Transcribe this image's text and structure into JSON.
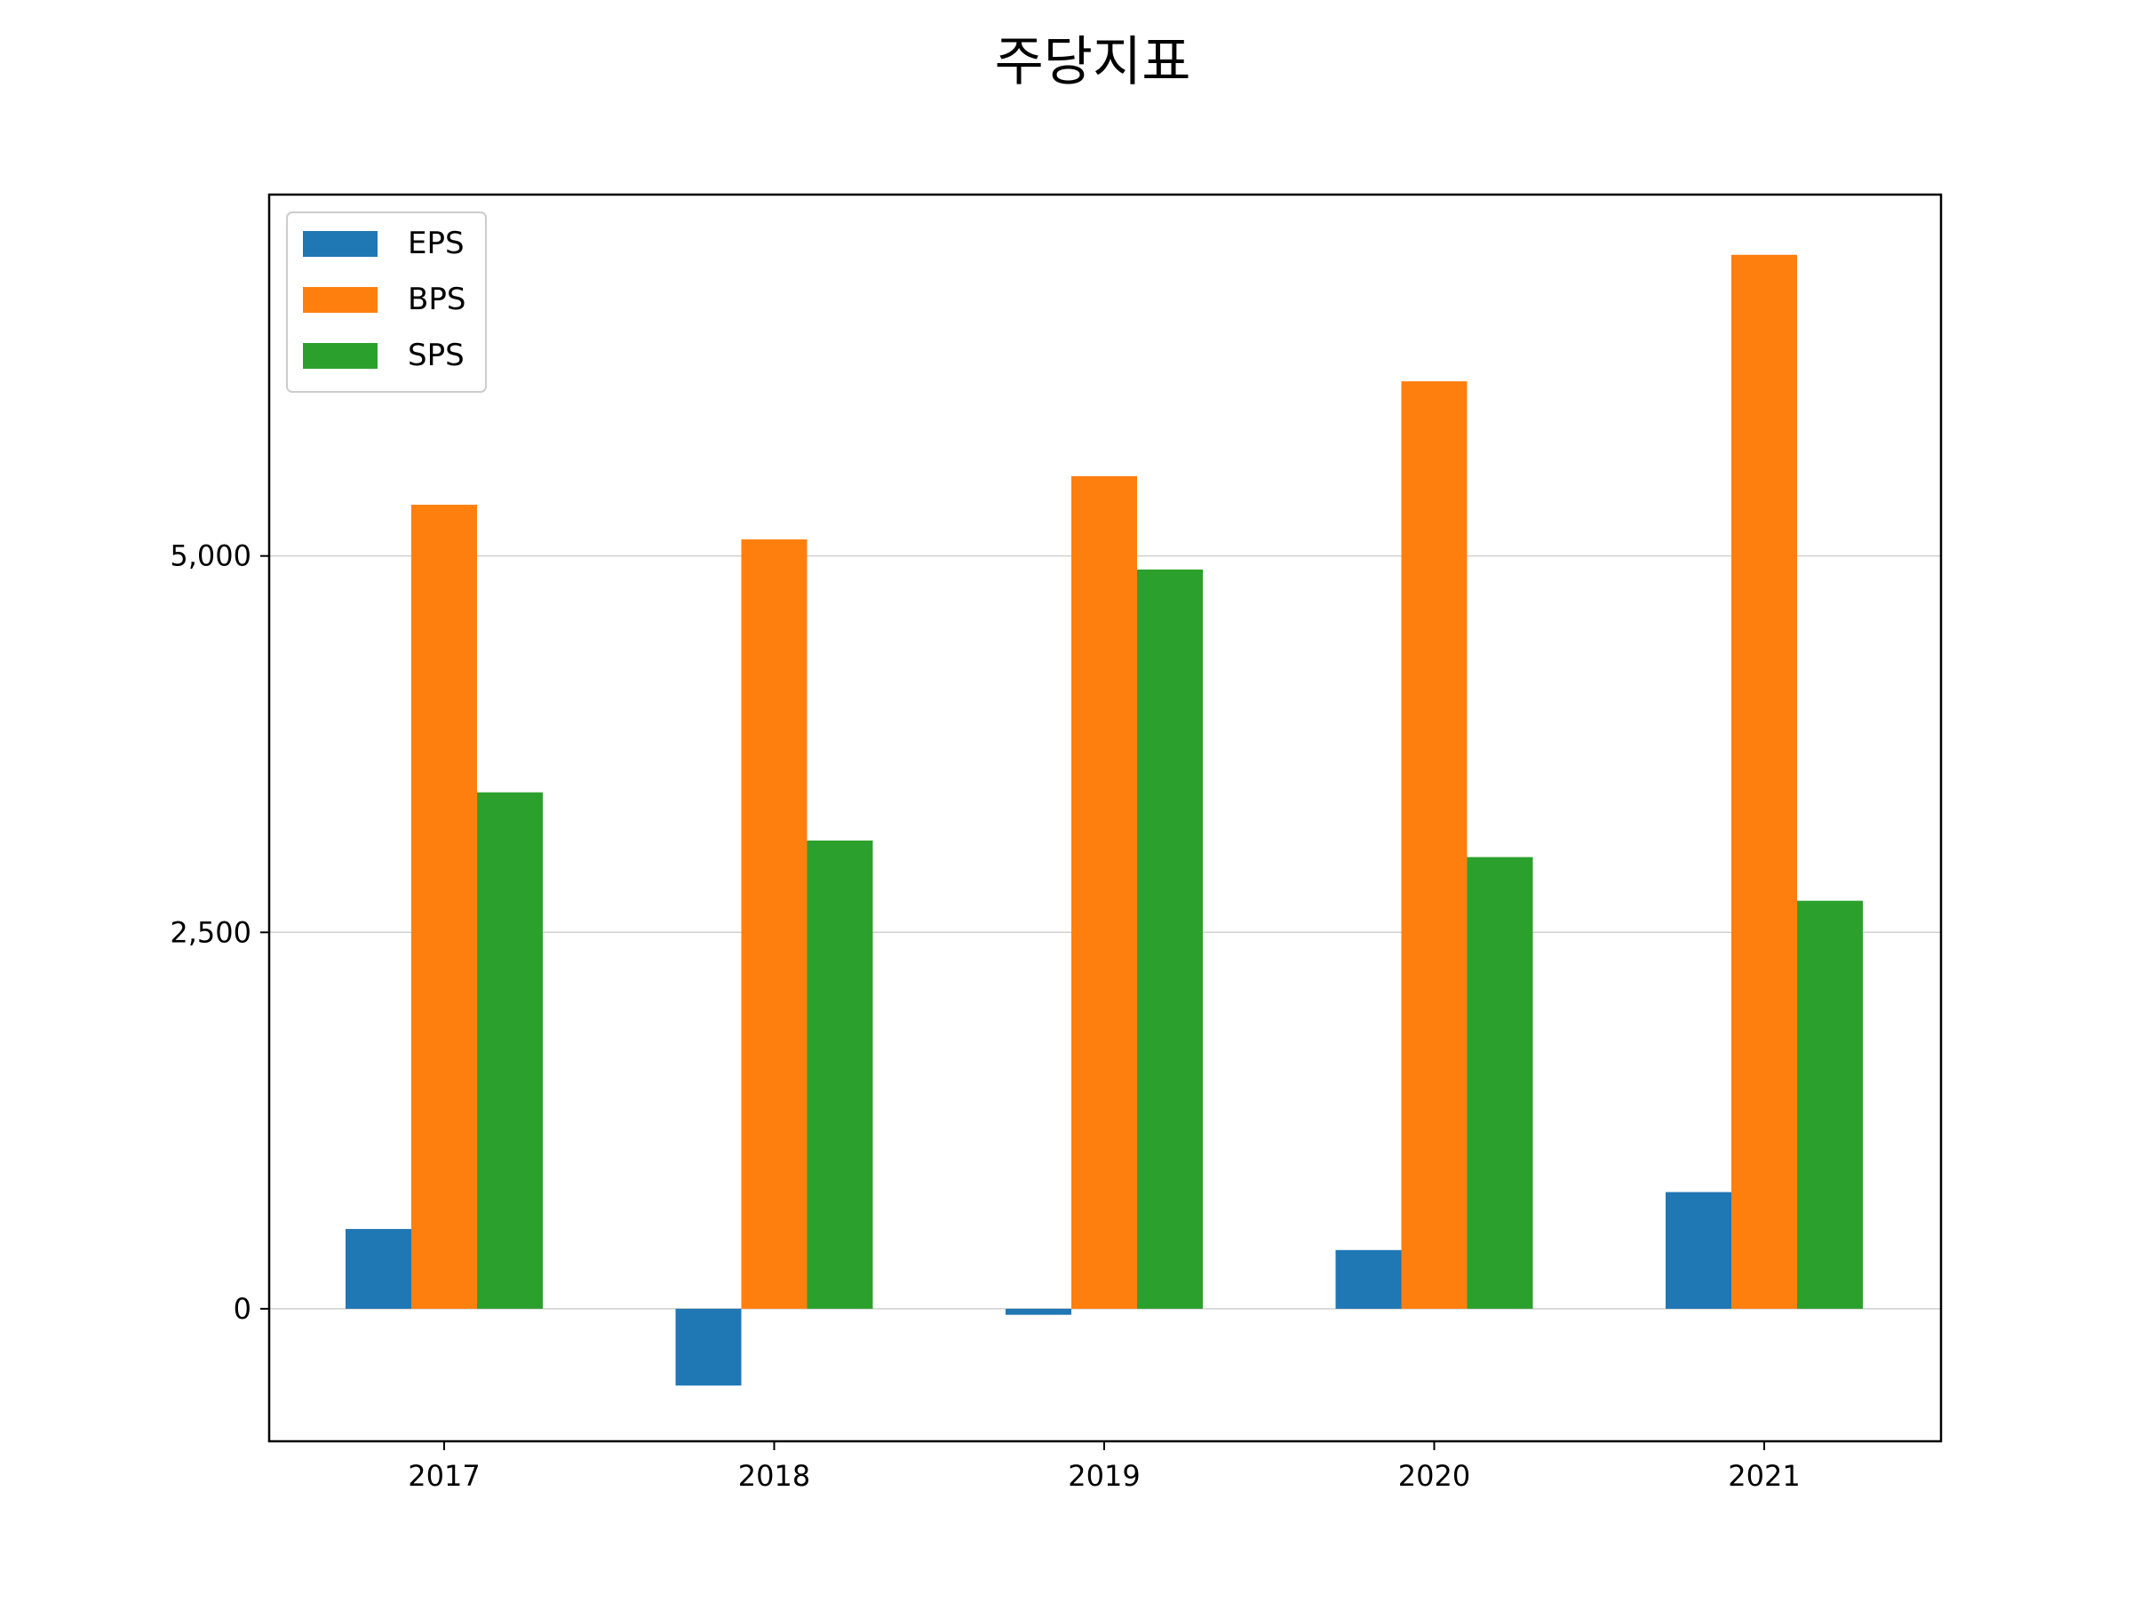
{
  "chart_data": {
    "type": "bar",
    "title": "주당지표",
    "xlabel": "",
    "ylabel": "",
    "categories": [
      "2017",
      "2018",
      "2019",
      "2020",
      "2021"
    ],
    "series": [
      {
        "name": "EPS",
        "color": "#1f77b4",
        "values": [
          530,
          -510,
          -40,
          390,
          775
        ]
      },
      {
        "name": "BPS",
        "color": "#ff7f0e",
        "values": [
          5340,
          5110,
          5530,
          6160,
          7000
        ]
      },
      {
        "name": "SPS",
        "color": "#2ca02c",
        "values": [
          3430,
          3110,
          4910,
          3000,
          2710
        ]
      }
    ],
    "ylim": [
      -880,
      7400
    ],
    "yticks": [
      0,
      2500,
      5000
    ],
    "ytick_labels": [
      "0",
      "2,500",
      "5,000"
    ],
    "grid": "horizontal",
    "legend_position": "top-left"
  }
}
